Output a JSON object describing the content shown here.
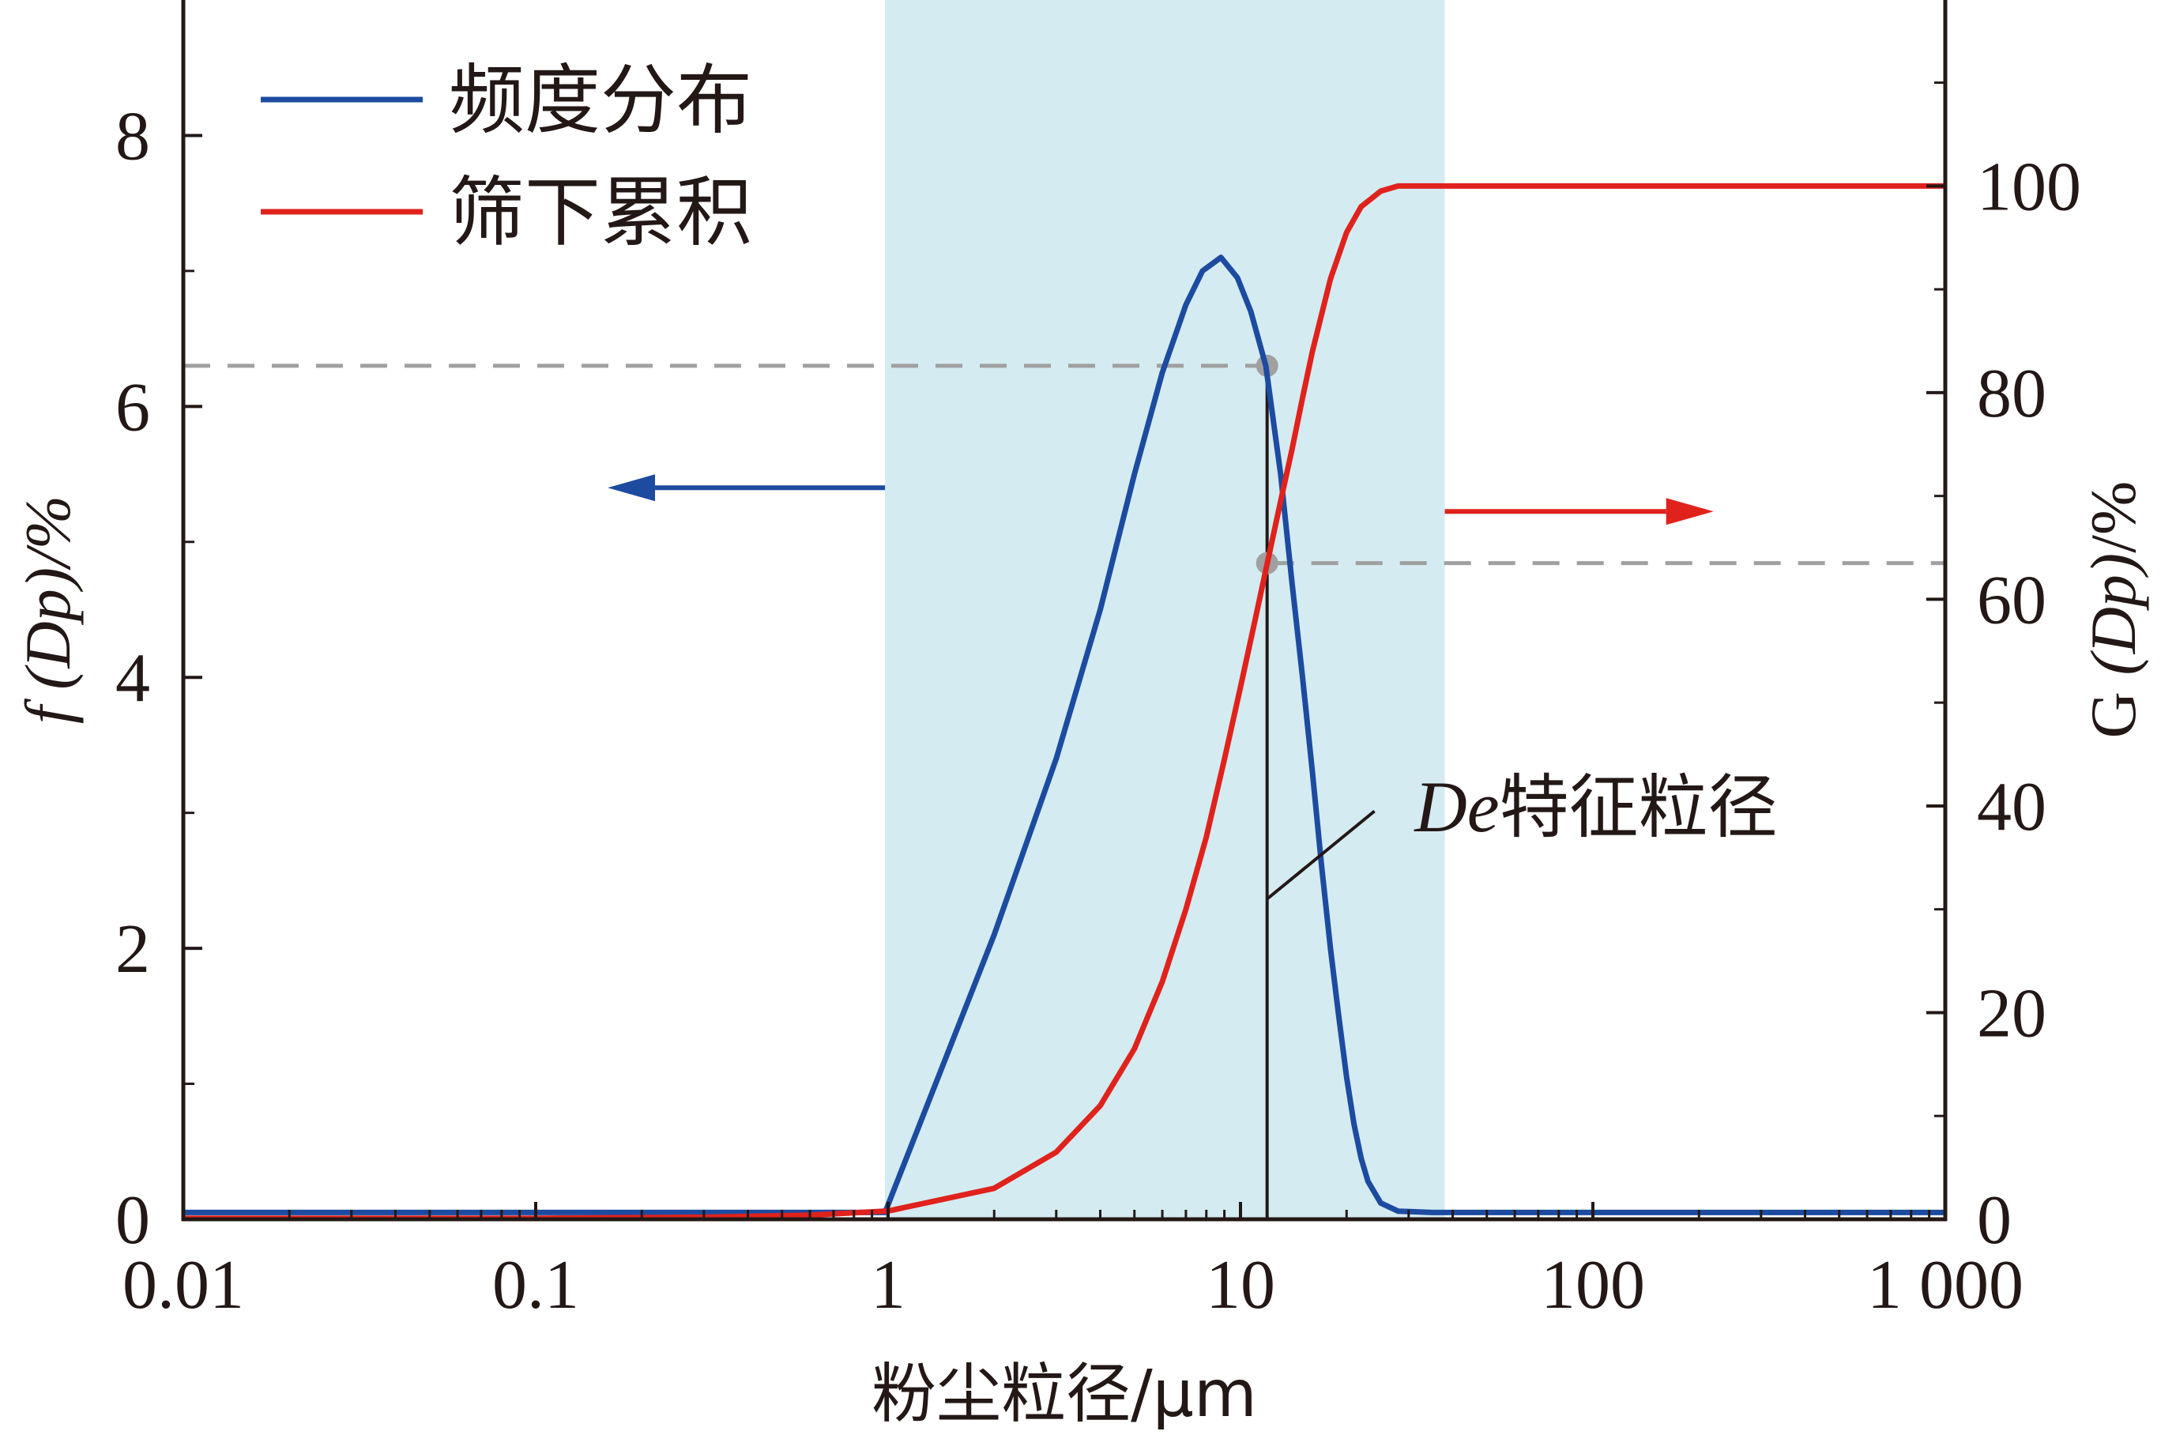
{
  "chart_data": {
    "type": "line",
    "x_scale": "log",
    "xlim": [
      0.01,
      1000
    ],
    "ylim_left": [
      0,
      9
    ],
    "ylim_right": [
      0,
      118
    ],
    "x_ticks": [
      {
        "value": 0.01,
        "label": "0.01"
      },
      {
        "value": 0.1,
        "label": "0.1"
      },
      {
        "value": 1,
        "label": "1"
      },
      {
        "value": 10,
        "label": "10"
      },
      {
        "value": 100,
        "label": "100"
      },
      {
        "value": 1000,
        "label": "1 000"
      }
    ],
    "y_left_ticks": [
      {
        "value": 0,
        "label": "0"
      },
      {
        "value": 2,
        "label": "2"
      },
      {
        "value": 4,
        "label": "4"
      },
      {
        "value": 6,
        "label": "6"
      },
      {
        "value": 8,
        "label": "8"
      }
    ],
    "y_right_ticks": [
      {
        "value": 0,
        "label": "0"
      },
      {
        "value": 20,
        "label": "20"
      },
      {
        "value": 40,
        "label": "40"
      },
      {
        "value": 60,
        "label": "60"
      },
      {
        "value": 80,
        "label": "80"
      },
      {
        "value": 100,
        "label": "100"
      }
    ],
    "xlabel": "粉尘粒径/μm",
    "ylabel_left": {
      "prefix": "f",
      "rest": " (Dp)/%"
    },
    "ylabel_right": {
      "prefix": "G ",
      "ital": "(Dp)",
      "rest": "/%"
    },
    "legend": {
      "position": "top-left"
    },
    "shaded_region": {
      "x_from": 0.98,
      "x_to": 38,
      "color": "#d4ebf1"
    },
    "series": [
      {
        "name": "频度分布",
        "axis": "left",
        "color": "#1c4ba0",
        "x": [
          0.01,
          0.1,
          0.5,
          0.98,
          2,
          3,
          4,
          5,
          6,
          7,
          7.8,
          8.8,
          9.8,
          10.7,
          11.8,
          13,
          14,
          15,
          16,
          17,
          18,
          19,
          20,
          21,
          22,
          23,
          25,
          28,
          35,
          100,
          1000
        ],
        "y": [
          0.05,
          0.05,
          0.05,
          0.05,
          2.1,
          3.4,
          4.5,
          5.5,
          6.25,
          6.75,
          7.0,
          7.1,
          6.95,
          6.7,
          6.3,
          5.5,
          4.7,
          4.0,
          3.3,
          2.6,
          2.0,
          1.5,
          1.05,
          0.7,
          0.45,
          0.28,
          0.12,
          0.06,
          0.05,
          0.05,
          0.05
        ]
      },
      {
        "name": "筛下累积",
        "axis": "right",
        "color": "#e0221d",
        "x": [
          0.01,
          0.1,
          0.3,
          0.6,
          1,
          2,
          3,
          4,
          5,
          6,
          7,
          8,
          9,
          10,
          11,
          12,
          13,
          14,
          15,
          16,
          18,
          20,
          22,
          25,
          28,
          32,
          38,
          50,
          100,
          1000
        ],
        "y": [
          0.1,
          0.1,
          0.2,
          0.4,
          0.8,
          3.0,
          6.5,
          11.0,
          16.5,
          23.0,
          30.0,
          37.0,
          44.5,
          51.5,
          58.0,
          64.0,
          69.5,
          74.5,
          79.5,
          84.0,
          91.0,
          95.5,
          98.0,
          99.5,
          100,
          100,
          100,
          100,
          100,
          100
        ]
      }
    ],
    "guides": {
      "de_x": 11.9,
      "f_at_de": 6.3,
      "g_at_de": 63.5
    },
    "arrows": [
      {
        "direction": "left",
        "color": "#1c4ba0",
        "x_from": 0.98,
        "x_to": 0.16,
        "y_left": 5.4
      },
      {
        "direction": "right",
        "color": "#e0221d",
        "x_from": 38,
        "x_to": 220,
        "y_right": 68.5
      }
    ],
    "annotations": [
      {
        "italic": "De",
        "text": "特征粒径",
        "x": 12,
        "y_right": 40
      }
    ]
  }
}
